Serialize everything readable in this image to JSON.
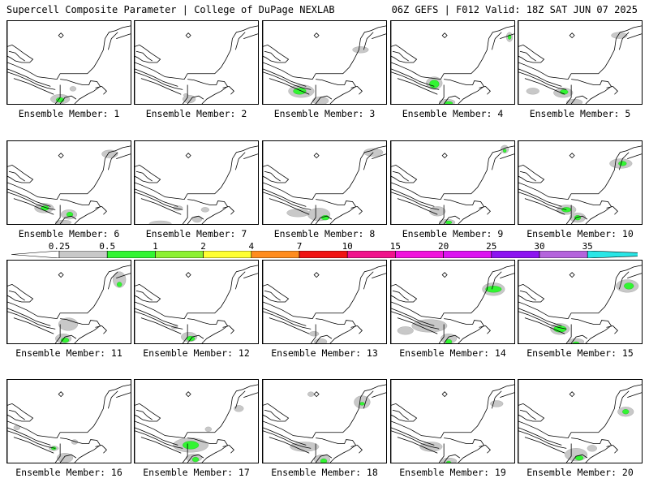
{
  "header": {
    "left_title": "Supercell Composite Parameter | College of DuPage NEXLAB",
    "right_title": "06Z GEFS | F012 Valid: 18Z SAT JUN 07 2025"
  },
  "colorbar": {
    "ticks": [
      "0.25",
      "0.5",
      "1",
      "2",
      "4",
      "7",
      "10",
      "15",
      "20",
      "25",
      "30",
      "35"
    ],
    "colors": [
      "#c8c8c8",
      "#32f532",
      "#8cf032",
      "#ffff32",
      "#ff8c1e",
      "#f01414",
      "#f0148c",
      "#f014dc",
      "#dc14f0",
      "#8c14f0",
      "#b464dc",
      "#28e6e6"
    ]
  },
  "members": [
    {
      "label": "Ensemble Member: 1"
    },
    {
      "label": "Ensemble Member: 2"
    },
    {
      "label": "Ensemble Member: 3"
    },
    {
      "label": "Ensemble Member: 4"
    },
    {
      "label": "Ensemble Member: 5"
    },
    {
      "label": "Ensemble Member: 6"
    },
    {
      "label": "Ensemble Member: 7"
    },
    {
      "label": "Ensemble Member: 8"
    },
    {
      "label": "Ensemble Member: 9"
    },
    {
      "label": "Ensemble Member: 10"
    },
    {
      "label": "Ensemble Member: 11"
    },
    {
      "label": "Ensemble Member: 12"
    },
    {
      "label": "Ensemble Member: 13"
    },
    {
      "label": "Ensemble Member: 14"
    },
    {
      "label": "Ensemble Member: 15"
    },
    {
      "label": "Ensemble Member: 16"
    },
    {
      "label": "Ensemble Member: 17"
    },
    {
      "label": "Ensemble Member: 18"
    },
    {
      "label": "Ensemble Member: 19"
    },
    {
      "label": "Ensemble Member: 20"
    }
  ]
}
